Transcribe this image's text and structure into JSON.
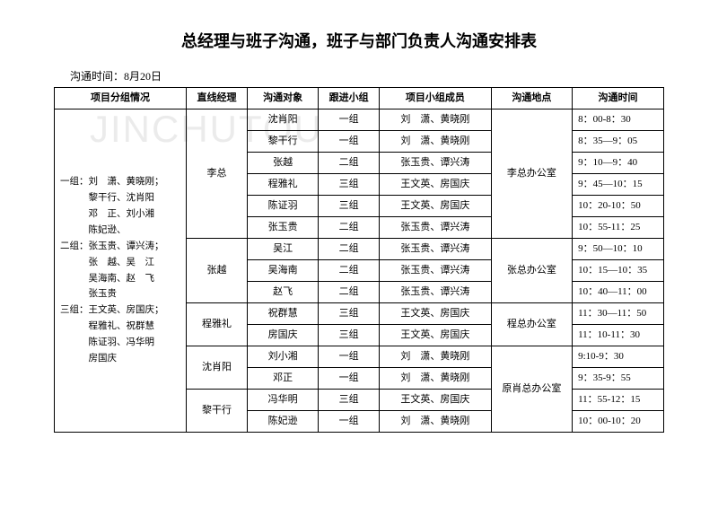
{
  "watermark": "JINCHUTOU",
  "title": "总经理与班子沟通，班子与部门负责人沟通安排表",
  "date_label": "沟通时间：8月20日",
  "headers": {
    "group": "项目分组情况",
    "manager": "直线经理",
    "target": "沟通对象",
    "team": "跟进小组",
    "members": "项目小组成员",
    "location": "沟通地点",
    "time": "沟通时间"
  },
  "group_info": "一组：刘　潇、黄晓刚；\n　　　黎干行、沈肖阳\n　　　邓　正、刘小湘\n　　　陈妃逊、\n二组：张玉贵、谭兴涛；\n　　　张　越、吴　江\n　　　吴海南、赵　飞\n　　　张玉贵\n三组：王文英、房国庆；\n　　　程雅礼、祝群慧\n　　　陈证羽、冯华明\n　　　房国庆",
  "blocks": [
    {
      "manager": "李总",
      "location": "李总办公室",
      "rows": [
        {
          "target": "沈肖阳",
          "team": "一组",
          "members": "刘　潇、黄晓刚",
          "time": "8：00-8：30"
        },
        {
          "target": "黎干行",
          "team": "一组",
          "members": "刘　潇、黄晓刚",
          "time": "8：35—9：05"
        },
        {
          "target": "张越",
          "team": "二组",
          "members": "张玉贵、谭兴涛",
          "time": "9：10—9：40"
        },
        {
          "target": "程雅礼",
          "team": "三组",
          "members": "王文英、房国庆",
          "time": "9：45—10：15"
        },
        {
          "target": "陈证羽",
          "team": "三组",
          "members": "王文英、房国庆",
          "time": "10：20-10：50"
        },
        {
          "target": "张玉贵",
          "team": "二组",
          "members": "张玉贵、谭兴涛",
          "time": "10：55-11：25"
        }
      ]
    },
    {
      "manager": "张越",
      "location": "张总办公室",
      "rows": [
        {
          "target": "吴江",
          "team": "二组",
          "members": "张玉贵、谭兴涛",
          "time": "9：50—10：10"
        },
        {
          "target": "吴海南",
          "team": "二组",
          "members": "张玉贵、谭兴涛",
          "time": "10：15—10：35"
        },
        {
          "target": "赵飞",
          "team": "二组",
          "members": "张玉贵、谭兴涛",
          "time": "10：40—11：00"
        }
      ]
    },
    {
      "manager": "程雅礼",
      "location": "程总办公室",
      "rows": [
        {
          "target": "祝群慧",
          "team": "三组",
          "members": "王文英、房国庆",
          "time": "11：30—11：50"
        },
        {
          "target": "房国庆",
          "team": "三组",
          "members": "王文英、房国庆",
          "time": "11：10-11：30"
        }
      ]
    },
    {
      "manager": "沈肖阳",
      "location": "原肖总办公室",
      "loc_span": 4,
      "rows": [
        {
          "target": "刘小湘",
          "team": "一组",
          "members": "刘　潇、黄晓刚",
          "time": "9:10-9：30"
        },
        {
          "target": "邓正",
          "team": "一组",
          "members": "刘　潇、黄晓刚",
          "time": "9：35-9：55"
        }
      ]
    },
    {
      "manager": "黎干行",
      "rows": [
        {
          "target": "冯华明",
          "team": "三组",
          "members": "王文英、房国庆",
          "time": "11：55-12：15"
        },
        {
          "target": "陈妃逊",
          "team": "一组",
          "members": "刘　潇、黄晓刚",
          "time": "10：00-10：20"
        }
      ]
    }
  ]
}
